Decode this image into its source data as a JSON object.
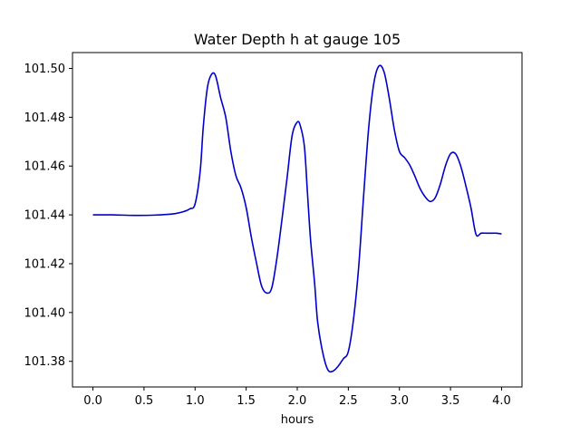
{
  "chart_data": {
    "type": "line",
    "title": "Water Depth h at gauge 105",
    "xlabel": "hours",
    "ylabel": "",
    "xlim": [
      -0.2,
      4.2
    ],
    "ylim": [
      101.3695,
      101.5065
    ],
    "x_ticks": [
      0.0,
      0.5,
      1.0,
      1.5,
      2.0,
      2.5,
      3.0,
      3.5,
      4.0
    ],
    "x_tick_labels": [
      "0.0",
      "0.5",
      "1.0",
      "1.5",
      "2.0",
      "2.5",
      "3.0",
      "3.5",
      "4.0"
    ],
    "y_ticks": [
      101.38,
      101.4,
      101.42,
      101.44,
      101.46,
      101.48,
      101.5
    ],
    "y_tick_labels": [
      "101.38",
      "101.40",
      "101.42",
      "101.44",
      "101.46",
      "101.48",
      "101.50"
    ],
    "grid": false,
    "series": [
      {
        "color": "#0000cc",
        "x": [
          0.0,
          0.2,
          0.4,
          0.6,
          0.8,
          0.9,
          0.95,
          1.0,
          1.05,
          1.08,
          1.12,
          1.16,
          1.2,
          1.25,
          1.3,
          1.35,
          1.4,
          1.45,
          1.5,
          1.55,
          1.6,
          1.65,
          1.7,
          1.75,
          1.8,
          1.85,
          1.9,
          1.95,
          2.0,
          2.03,
          2.07,
          2.1,
          2.13,
          2.17,
          2.2,
          2.25,
          2.3,
          2.35,
          2.4,
          2.45,
          2.5,
          2.55,
          2.6,
          2.65,
          2.7,
          2.75,
          2.8,
          2.85,
          2.9,
          2.95,
          3.0,
          3.05,
          3.1,
          3.15,
          3.2,
          3.25,
          3.3,
          3.35,
          3.4,
          3.45,
          3.5,
          3.55,
          3.6,
          3.65,
          3.7,
          3.75,
          3.8,
          3.85,
          3.9,
          3.95,
          4.0
        ],
        "y": [
          101.44,
          101.44,
          101.4398,
          101.4399,
          101.4405,
          101.4415,
          101.4425,
          101.4445,
          101.458,
          101.476,
          101.492,
          101.4975,
          101.497,
          101.488,
          101.48,
          101.466,
          101.456,
          101.451,
          101.443,
          101.431,
          101.4205,
          101.411,
          101.408,
          101.41,
          101.422,
          101.438,
          101.455,
          101.4725,
          101.478,
          101.4765,
          101.468,
          101.449,
          101.43,
          101.412,
          101.396,
          101.3835,
          101.3765,
          101.376,
          101.378,
          101.381,
          101.384,
          101.397,
          101.418,
          101.448,
          101.476,
          101.494,
          101.501,
          101.4985,
          101.488,
          101.475,
          101.466,
          101.4635,
          101.4605,
          101.456,
          101.451,
          101.4475,
          101.4455,
          101.447,
          101.4525,
          101.46,
          101.465,
          101.465,
          101.46,
          101.452,
          101.443,
          101.432,
          101.4325,
          101.4325,
          101.4325,
          101.4325,
          101.4322
        ]
      }
    ]
  }
}
